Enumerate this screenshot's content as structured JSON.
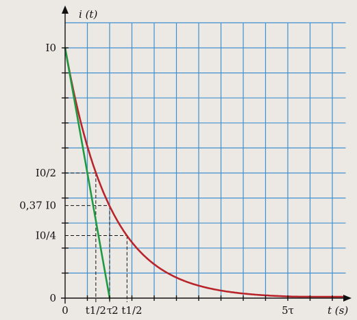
{
  "chart_data": {
    "type": "line",
    "title": "",
    "ylabel": "i (t)",
    "xlabel": "t (s)",
    "x_unit": "τ",
    "xlim": [
      0,
      6.3
    ],
    "ylim": [
      0,
      1.1
    ],
    "grid": true,
    "y_tick_labels": [
      {
        "value": 1,
        "label": "I0"
      },
      {
        "value": 0.5,
        "label": "I0/2"
      },
      {
        "value": 0.37,
        "label": "0,37 I0"
      },
      {
        "value": 0.25,
        "label": "I0/4"
      },
      {
        "value": 0,
        "label": "0"
      }
    ],
    "x_tick_labels": [
      {
        "value": 0,
        "label": "0"
      },
      {
        "value": 0.69,
        "label": "t1/2"
      },
      {
        "value": 1,
        "label": "τ"
      },
      {
        "value": 1.39,
        "label": "2 t1/2"
      },
      {
        "value": 5,
        "label": "5τ"
      }
    ],
    "series": [
      {
        "name": "",
        "kind": "curve",
        "function": "exp(-t/τ)",
        "color": "#b8242a",
        "x": [
          0,
          0.25,
          0.5,
          0.69,
          1,
          1.39,
          1.5,
          2,
          2.5,
          3,
          3.5,
          4,
          4.5,
          5,
          5.5,
          6,
          6.3
        ],
        "y": [
          1,
          0.78,
          0.61,
          0.5,
          0.37,
          0.25,
          0.22,
          0.14,
          0.08,
          0.05,
          0.03,
          0.02,
          0.01,
          0.007,
          0.004,
          0.002,
          0.002
        ]
      },
      {
        "name": "",
        "kind": "tangent",
        "color": "#1f9a43",
        "x": [
          0,
          1
        ],
        "y": [
          1,
          0
        ]
      }
    ],
    "guides": [
      {
        "y": 0.5,
        "x": 0.69
      },
      {
        "y": 0.37,
        "x": 1
      },
      {
        "y": 0.25,
        "x": 1.39
      }
    ]
  }
}
